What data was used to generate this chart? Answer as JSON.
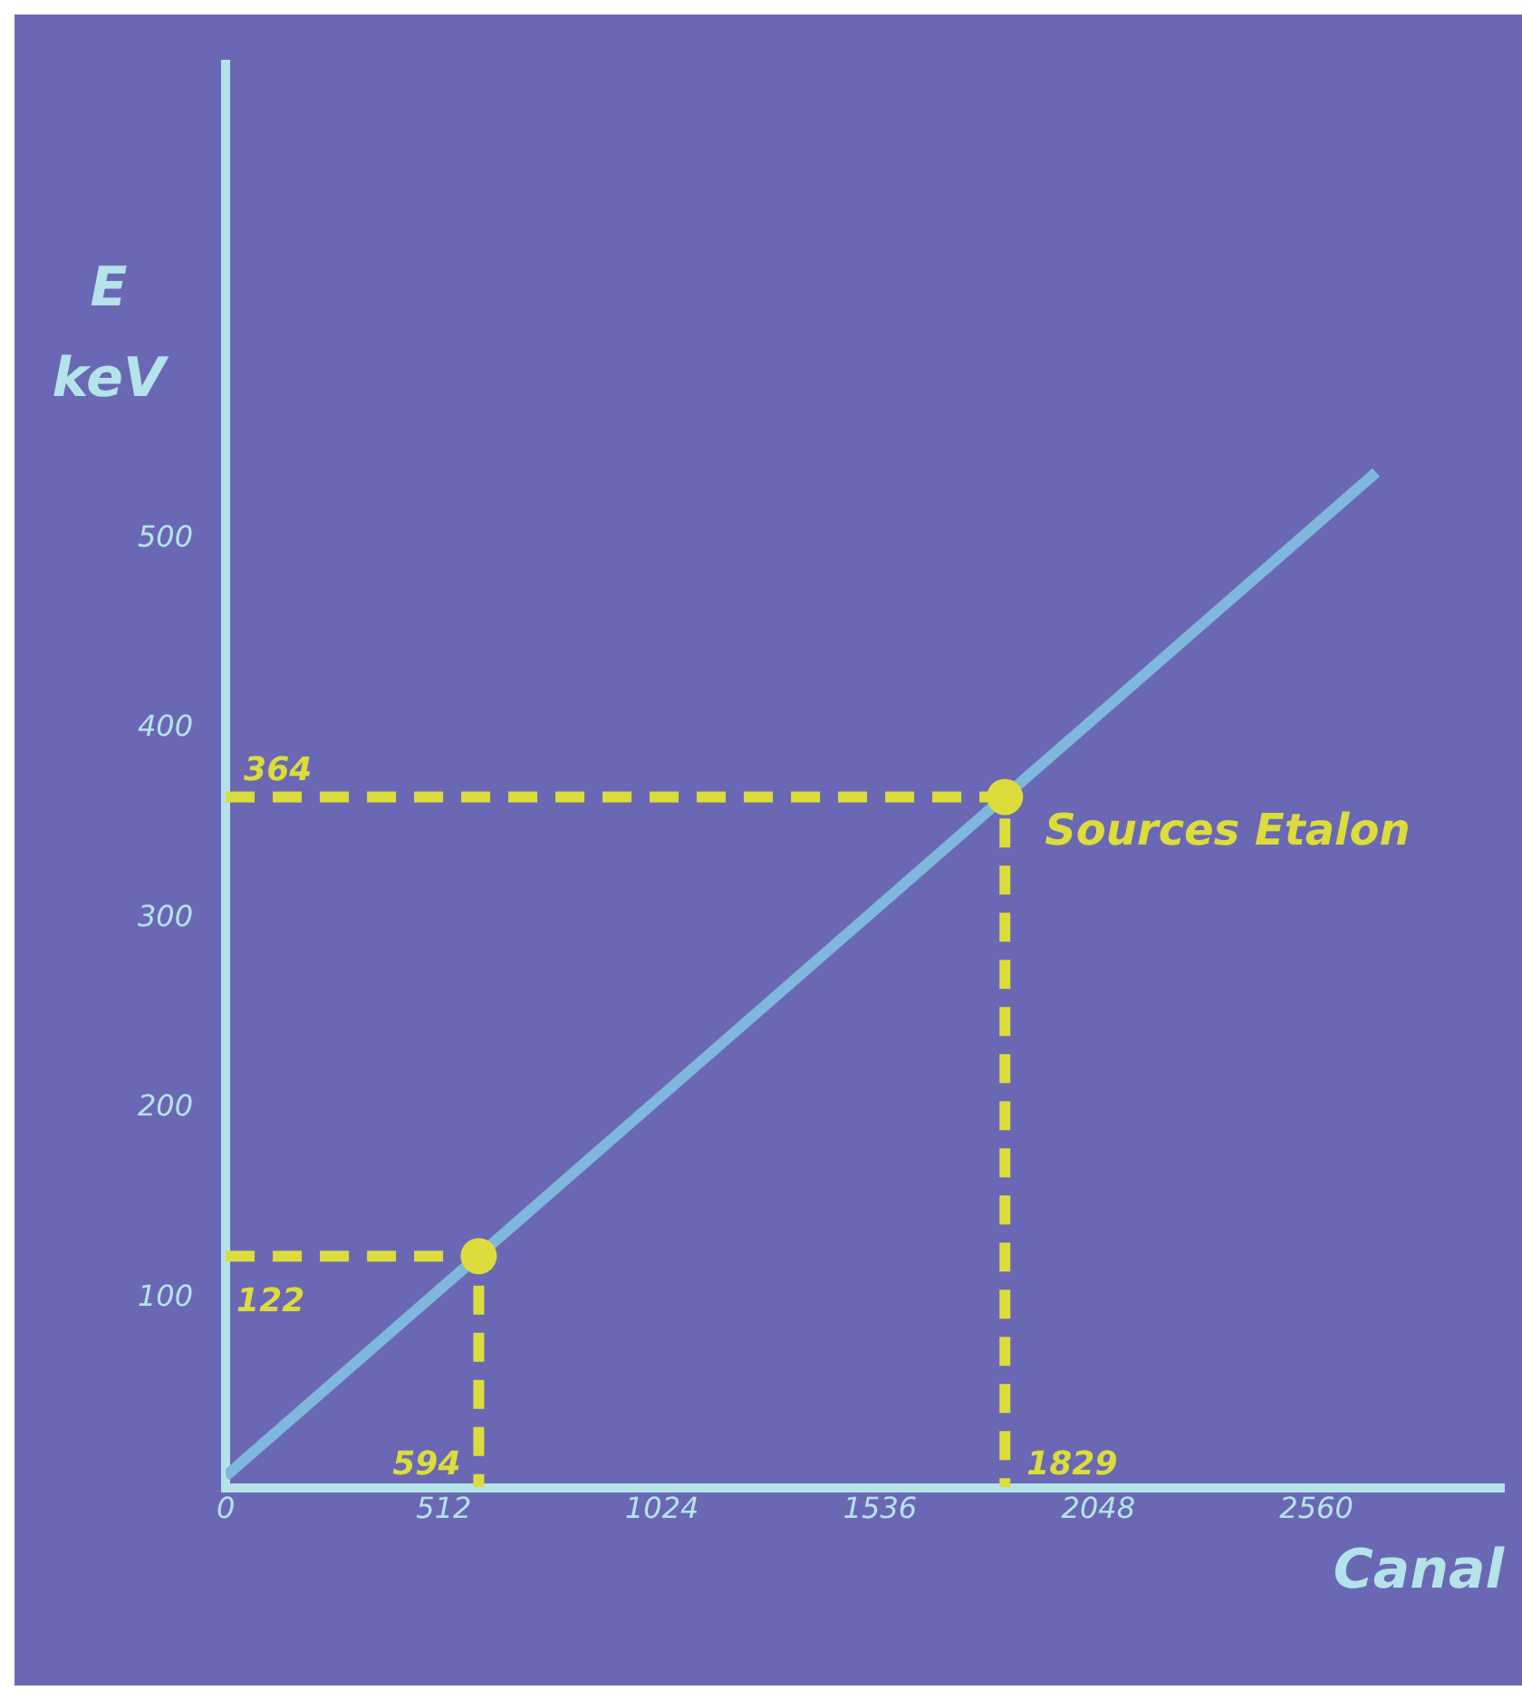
{
  "chart_data": {
    "type": "line",
    "xlabel": "Canal",
    "ylabel": "E\nkeV",
    "xlim": [
      0,
      3000
    ],
    "ylim": [
      0,
      750
    ],
    "xticks": [
      0,
      512,
      1024,
      1536,
      2048,
      2560
    ],
    "yticks": [
      100,
      200,
      300,
      400,
      500
    ],
    "grid": false,
    "series": [
      {
        "type": "line",
        "color": "#7fb8dc",
        "x": [
          0,
          2700
        ],
        "values": [
          6,
          535
        ],
        "marker": "none"
      },
      {
        "type": "line",
        "color": "#dcdc3c",
        "x": [
          0,
          594,
          594
        ],
        "values": [
          122,
          122,
          0
        ],
        "line_style": "dashed",
        "marker": "none"
      },
      {
        "type": "line",
        "color": "#dcdc3c",
        "x": [
          0,
          1829,
          1829
        ],
        "values": [
          364,
          364,
          0
        ],
        "line_style": "dashed",
        "marker": "none"
      },
      {
        "type": "scatter",
        "color": "#dcdc3c",
        "x": [
          594,
          1829
        ],
        "values": [
          122,
          364
        ],
        "marker": "circle"
      }
    ],
    "annotations": [
      {
        "text": "364",
        "x": 0,
        "y": 364
      },
      {
        "text": "122",
        "x": 0,
        "y": 122
      },
      {
        "text": "594",
        "x": 594,
        "y": 0
      },
      {
        "text": "1829",
        "x": 1829,
        "y": 0
      },
      {
        "text": "Sources Etalon",
        "x": 1829,
        "y": 364
      }
    ]
  }
}
